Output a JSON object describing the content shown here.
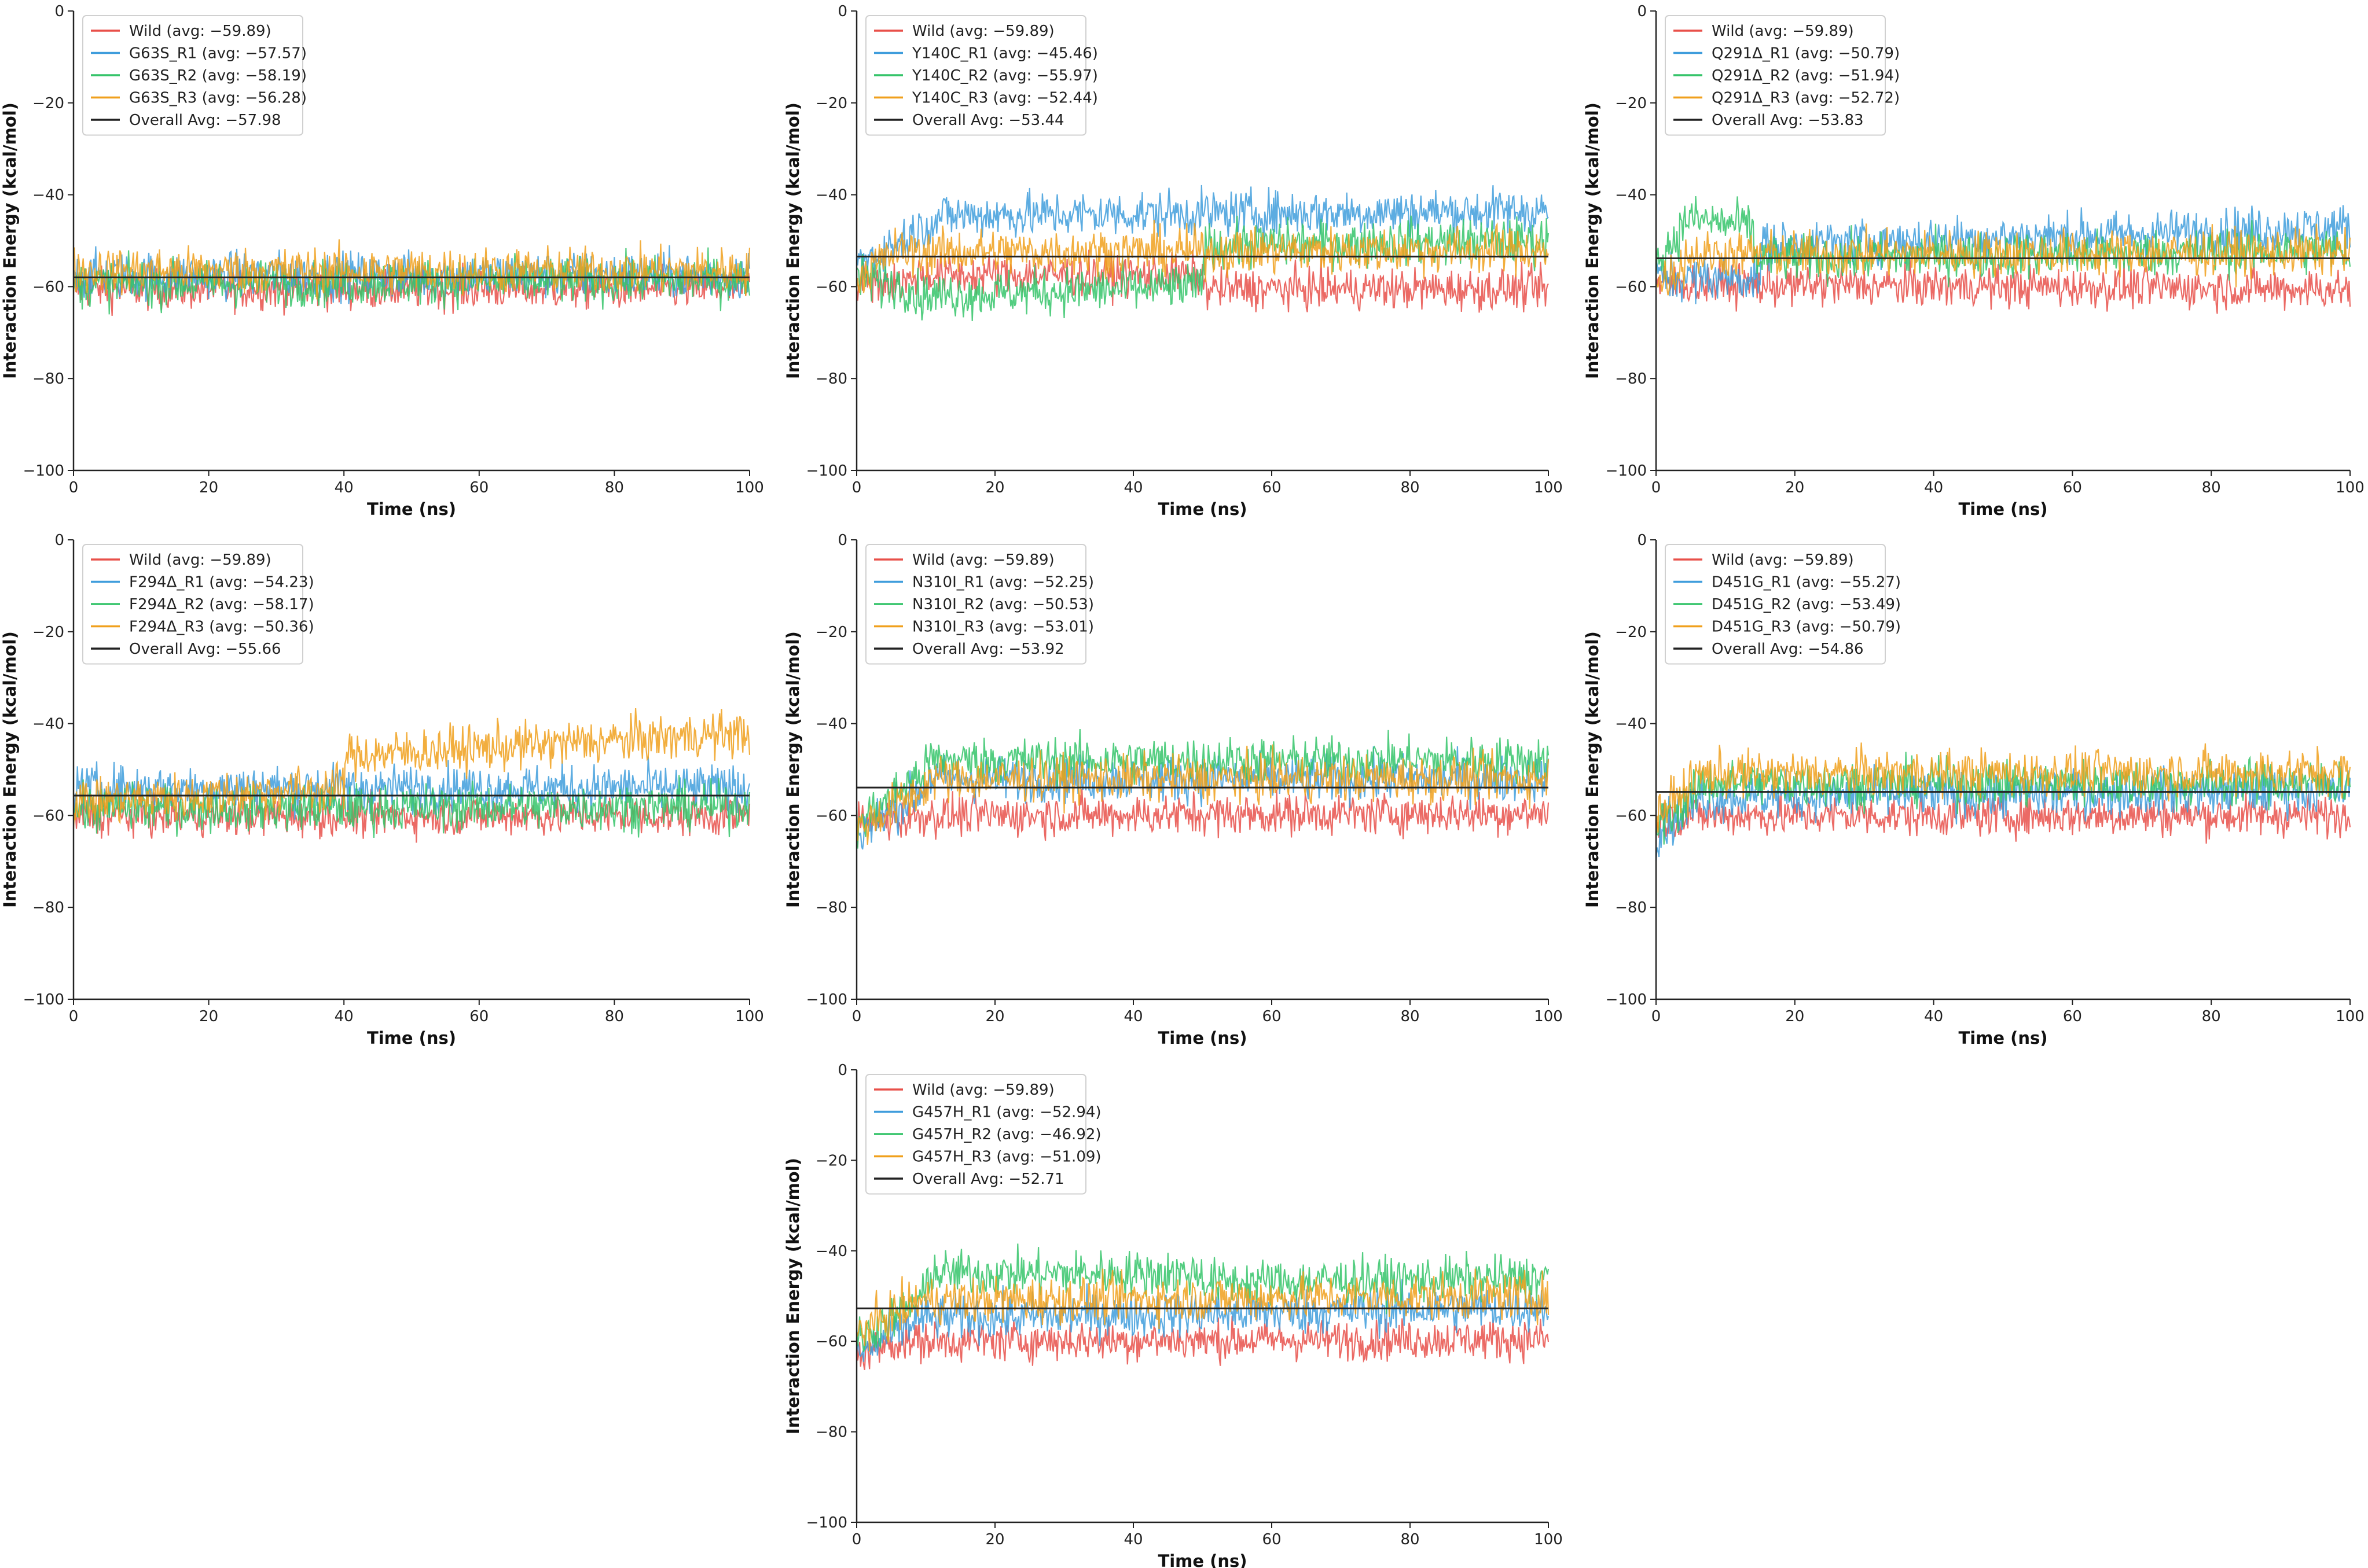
{
  "colors": {
    "wild": "#e8504a",
    "r1": "#3f9ddc",
    "r2": "#35c46a",
    "r3": "#f0a01c",
    "overall": "#222222"
  },
  "chart_data": [
    {
      "type": "line",
      "xlabel": "Time (ns)",
      "ylabel": "Interaction Energy (kcal/mol)",
      "xlim": [
        0,
        100
      ],
      "ylim": [
        -100,
        0
      ],
      "xticks": [
        0,
        20,
        40,
        60,
        80,
        100
      ],
      "yticks": [
        0,
        -20,
        -40,
        -60,
        -80,
        -100
      ],
      "legend_position": "top-left",
      "series": [
        {
          "name": "Wild (avg: −59.89)",
          "key": "wild",
          "avg": -59.89
        },
        {
          "name": "G63S_R1 (avg: −57.57)",
          "key": "r1",
          "avg": -57.57
        },
        {
          "name": "G63S_R2 (avg: −58.19)",
          "key": "r2",
          "avg": -58.19
        },
        {
          "name": "G63S_R3 (avg: −56.28)",
          "key": "r3",
          "avg": -56.28
        },
        {
          "name": "Overall Avg: −57.98",
          "key": "overall",
          "avg": -57.98
        }
      ]
    },
    {
      "type": "line",
      "xlabel": "Time (ns)",
      "ylabel": "Interaction Energy (kcal/mol)",
      "xlim": [
        0,
        100
      ],
      "ylim": [
        -100,
        0
      ],
      "xticks": [
        0,
        20,
        40,
        60,
        80,
        100
      ],
      "yticks": [
        0,
        -20,
        -40,
        -60,
        -80,
        -100
      ],
      "legend_position": "top-left",
      "series": [
        {
          "name": "Wild (avg: −59.89)",
          "key": "wild",
          "avg": -59.89
        },
        {
          "name": "Y140C_R1 (avg: −45.46)",
          "key": "r1",
          "avg": -45.46
        },
        {
          "name": "Y140C_R2 (avg: −55.97)",
          "key": "r2",
          "avg": -55.97
        },
        {
          "name": "Y140C_R3 (avg: −52.44)",
          "key": "r3",
          "avg": -52.44
        },
        {
          "name": "Overall Avg: −53.44",
          "key": "overall",
          "avg": -53.44
        }
      ]
    },
    {
      "type": "line",
      "xlabel": "Time (ns)",
      "ylabel": "Interaction Energy (kcal/mol)",
      "xlim": [
        0,
        100
      ],
      "ylim": [
        -100,
        0
      ],
      "xticks": [
        0,
        20,
        40,
        60,
        80,
        100
      ],
      "yticks": [
        0,
        -20,
        -40,
        -60,
        -80,
        -100
      ],
      "legend_position": "top-left",
      "series": [
        {
          "name": "Wild (avg: −59.89)",
          "key": "wild",
          "avg": -59.89
        },
        {
          "name": "Q291Δ_R1 (avg: −50.79)",
          "key": "r1",
          "avg": -50.79
        },
        {
          "name": "Q291Δ_R2 (avg: −51.94)",
          "key": "r2",
          "avg": -51.94
        },
        {
          "name": "Q291Δ_R3 (avg: −52.72)",
          "key": "r3",
          "avg": -52.72
        },
        {
          "name": "Overall Avg: −53.83",
          "key": "overall",
          "avg": -53.83
        }
      ]
    },
    {
      "type": "line",
      "xlabel": "Time (ns)",
      "ylabel": "Interaction Energy (kcal/mol)",
      "xlim": [
        0,
        100
      ],
      "ylim": [
        -100,
        0
      ],
      "xticks": [
        0,
        20,
        40,
        60,
        80,
        100
      ],
      "yticks": [
        0,
        -20,
        -40,
        -60,
        -80,
        -100
      ],
      "legend_position": "top-left",
      "series": [
        {
          "name": "Wild (avg: −59.89)",
          "key": "wild",
          "avg": -59.89
        },
        {
          "name": "F294Δ_R1 (avg: −54.23)",
          "key": "r1",
          "avg": -54.23
        },
        {
          "name": "F294Δ_R2 (avg: −58.17)",
          "key": "r2",
          "avg": -58.17
        },
        {
          "name": "F294Δ_R3 (avg: −50.36)",
          "key": "r3",
          "avg": -50.36
        },
        {
          "name": "Overall Avg: −55.66",
          "key": "overall",
          "avg": -55.66
        }
      ]
    },
    {
      "type": "line",
      "xlabel": "Time (ns)",
      "ylabel": "Interaction Energy (kcal/mol)",
      "xlim": [
        0,
        100
      ],
      "ylim": [
        -100,
        0
      ],
      "xticks": [
        0,
        20,
        40,
        60,
        80,
        100
      ],
      "yticks": [
        0,
        -20,
        -40,
        -60,
        -80,
        -100
      ],
      "legend_position": "top-left",
      "series": [
        {
          "name": "Wild (avg: −59.89)",
          "key": "wild",
          "avg": -59.89
        },
        {
          "name": "N310I_R1 (avg: −52.25)",
          "key": "r1",
          "avg": -52.25
        },
        {
          "name": "N310I_R2 (avg: −50.53)",
          "key": "r2",
          "avg": -50.53
        },
        {
          "name": "N310I_R3 (avg: −53.01)",
          "key": "r3",
          "avg": -53.01
        },
        {
          "name": "Overall Avg: −53.92",
          "key": "overall",
          "avg": -53.92
        }
      ]
    },
    {
      "type": "line",
      "xlabel": "Time (ns)",
      "ylabel": "Interaction Energy (kcal/mol)",
      "xlim": [
        0,
        100
      ],
      "ylim": [
        -100,
        0
      ],
      "xticks": [
        0,
        20,
        40,
        60,
        80,
        100
      ],
      "yticks": [
        0,
        -20,
        -40,
        -60,
        -80,
        -100
      ],
      "legend_position": "top-left",
      "series": [
        {
          "name": "Wild (avg: −59.89)",
          "key": "wild",
          "avg": -59.89
        },
        {
          "name": "D451G_R1 (avg: −55.27)",
          "key": "r1",
          "avg": -55.27
        },
        {
          "name": "D451G_R2 (avg: −53.49)",
          "key": "r2",
          "avg": -53.49
        },
        {
          "name": "D451G_R3 (avg: −50.79)",
          "key": "r3",
          "avg": -50.79
        },
        {
          "name": "Overall Avg: −54.86",
          "key": "overall",
          "avg": -54.86
        }
      ]
    },
    {
      "type": "line",
      "xlabel": "Time (ns)",
      "ylabel": "Interaction Energy (kcal/mol)",
      "xlim": [
        0,
        100
      ],
      "ylim": [
        -100,
        0
      ],
      "xticks": [
        0,
        20,
        40,
        60,
        80,
        100
      ],
      "yticks": [
        0,
        -20,
        -40,
        -60,
        -80,
        -100
      ],
      "legend_position": "top-left",
      "series": [
        {
          "name": "Wild (avg: −59.89)",
          "key": "wild",
          "avg": -59.89
        },
        {
          "name": "G457H_R1 (avg: −52.94)",
          "key": "r1",
          "avg": -52.94
        },
        {
          "name": "G457H_R2 (avg: −46.92)",
          "key": "r2",
          "avg": -46.92
        },
        {
          "name": "G457H_R3 (avg: −51.09)",
          "key": "r3",
          "avg": -51.09
        },
        {
          "name": "Overall Avg: −52.71",
          "key": "overall",
          "avg": -52.71
        }
      ]
    }
  ]
}
